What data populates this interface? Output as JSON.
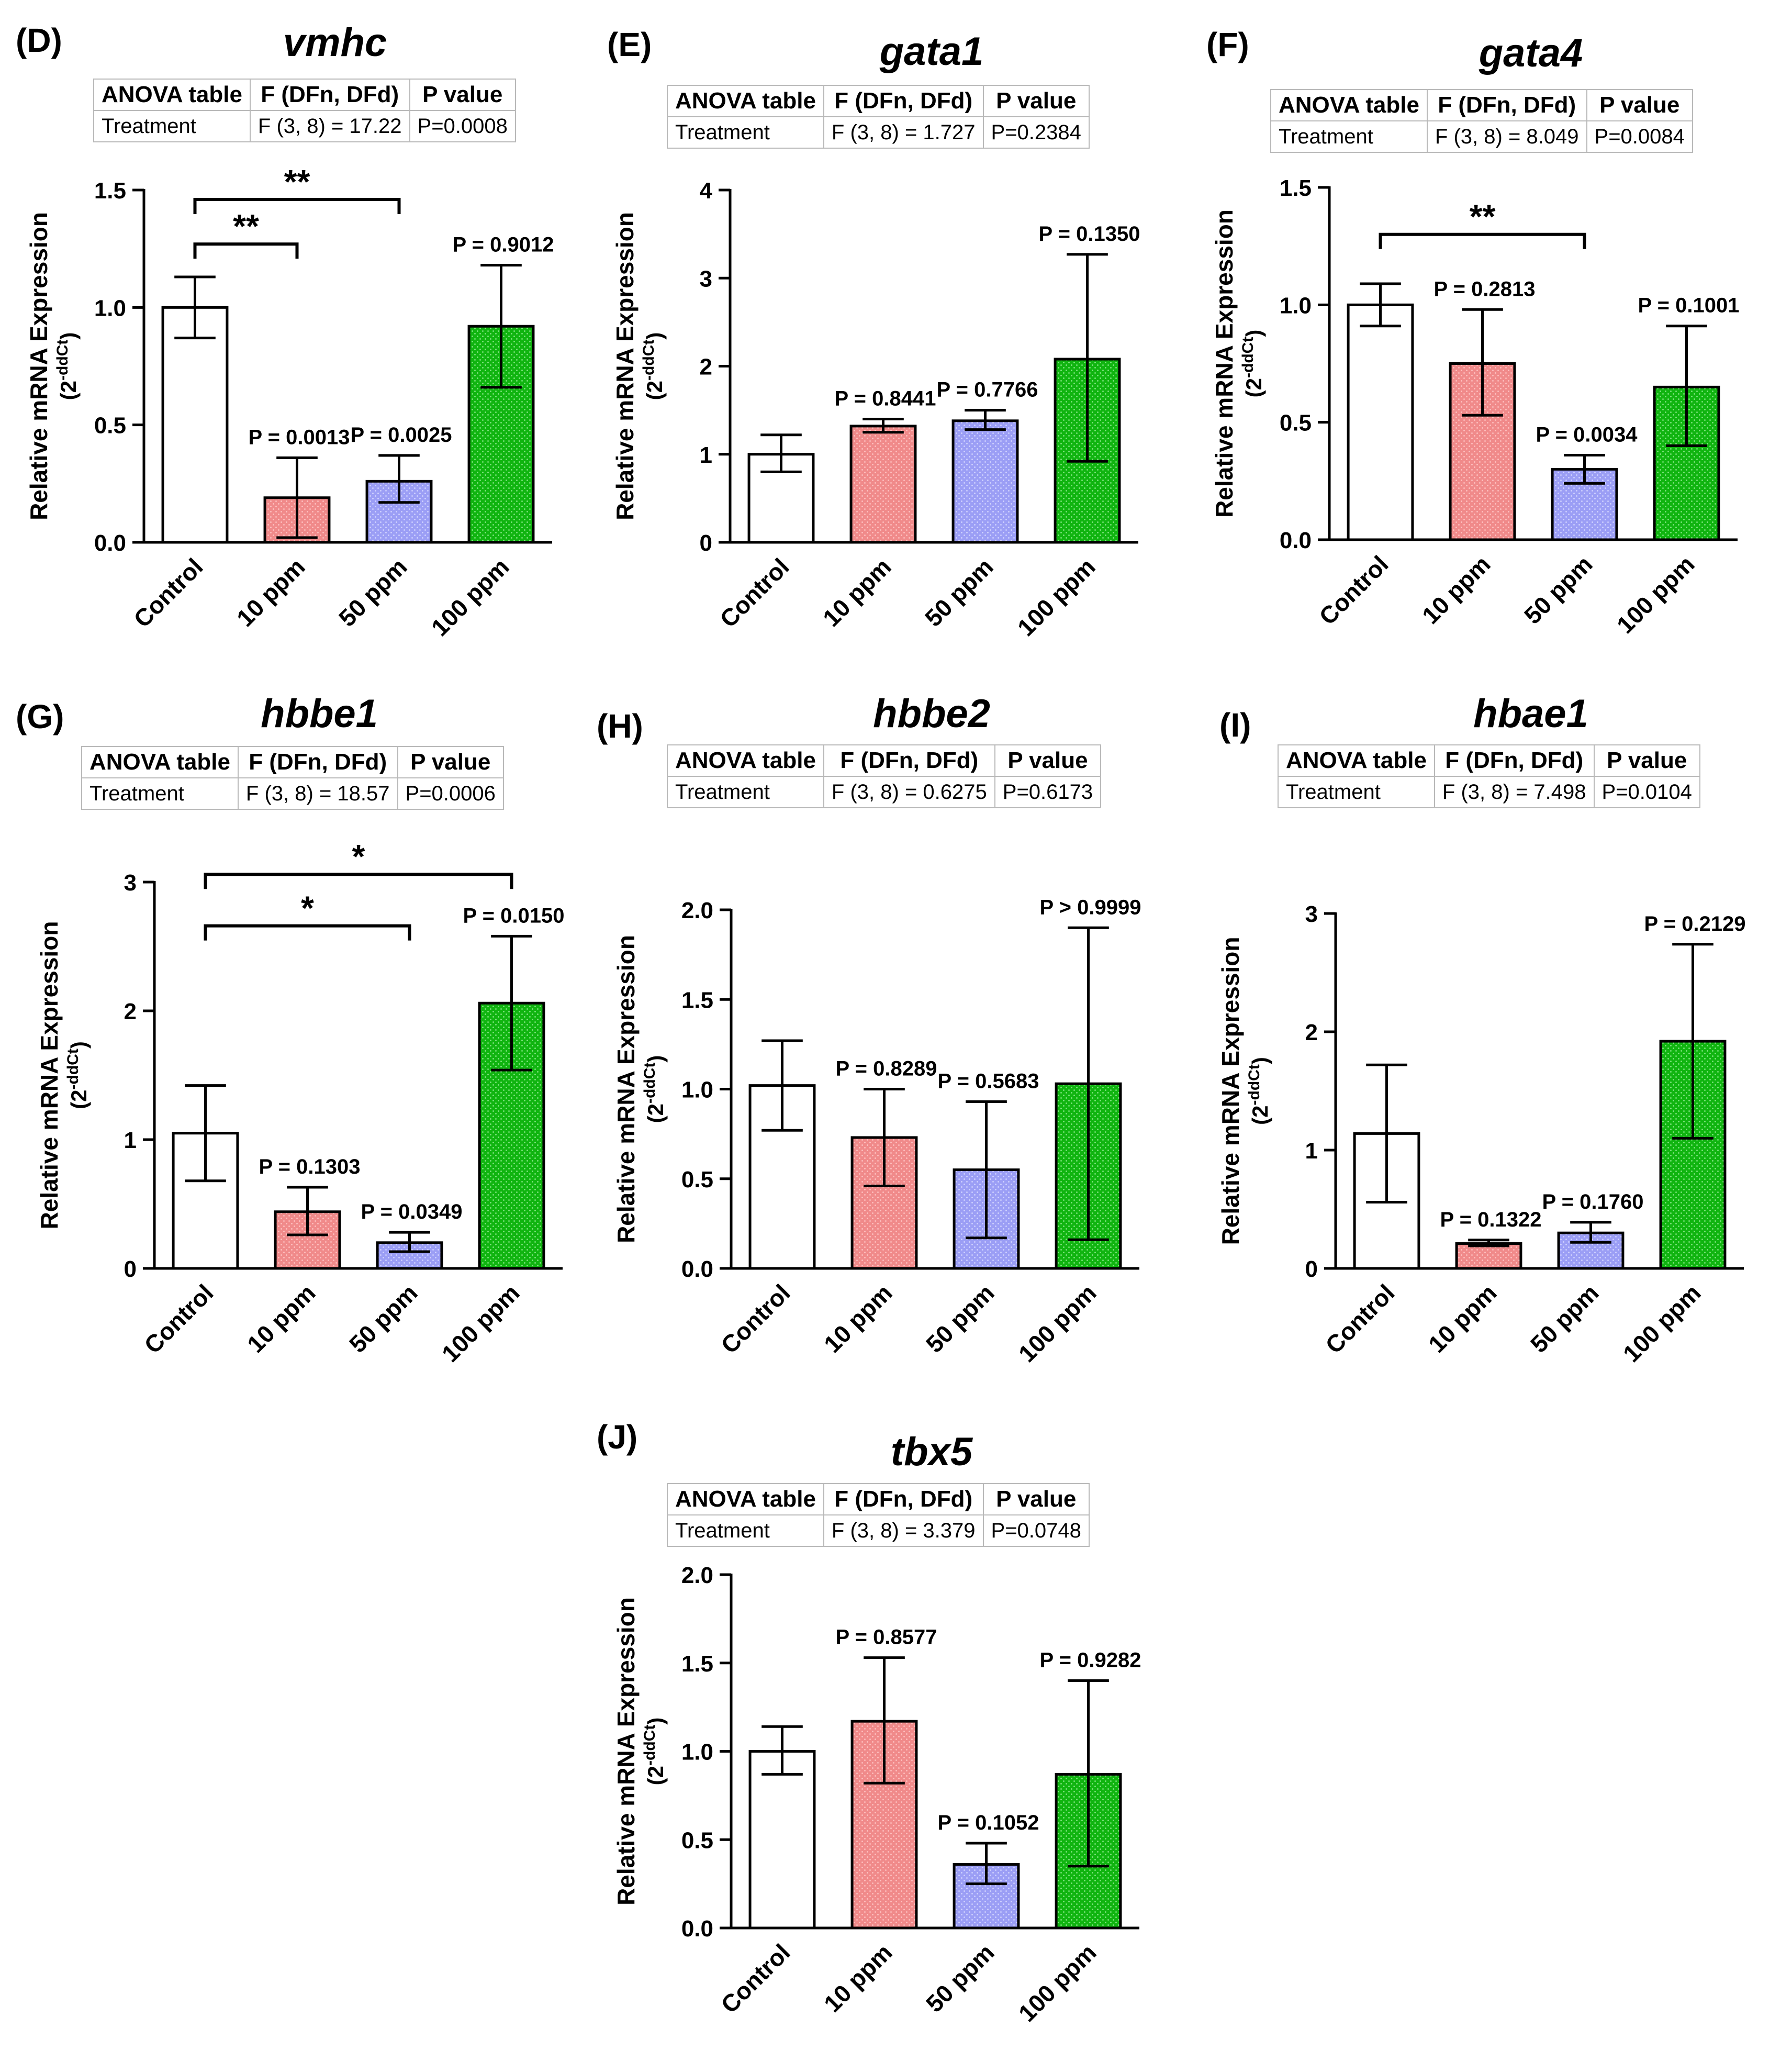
{
  "style": {
    "bar_colors": [
      "#ffffff",
      "#f08a8a",
      "#9b9ef5",
      "#10b410"
    ],
    "dot_colors": [
      "#ffffff",
      "#ffc4c4",
      "#d4d6ff",
      "#86e786"
    ],
    "axis_color": "#000000",
    "table_border": "#b9b9b9"
  },
  "chart_data": [
    {
      "type": "bar",
      "letter": "(D)",
      "title": "vmhc",
      "anova": {
        "header": [
          "ANOVA table",
          "F (DFn, DFd)",
          "P value"
        ],
        "row": [
          "Treatment",
          "F (3, 8) = 17.22",
          "P=0.0008"
        ]
      },
      "ylabel": "Relative mRNA Expression",
      "ylabel_unit": "(2",
      "ylabel_sup": "-ddCt",
      "ylabel_close": ")",
      "ylim": [
        0,
        1.5
      ],
      "ticks": [
        "0.0",
        "0.5",
        "1.0",
        "1.5"
      ],
      "categories": [
        "Control",
        "10 ppm",
        "50 ppm",
        "100 ppm"
      ],
      "values": [
        1.0,
        0.19,
        0.26,
        0.92
      ],
      "error_low": [
        0.87,
        0.02,
        0.17,
        0.66
      ],
      "error_high": [
        1.13,
        0.36,
        0.37,
        1.18
      ],
      "pvalues": [
        "",
        "P = 0.0013",
        "P = 0.0025",
        "P = 0.9012"
      ],
      "brackets": [
        {
          "from": 0,
          "to": 2,
          "y": 1.46,
          "label": "**"
        },
        {
          "from": 0,
          "to": 1,
          "y": 1.27,
          "label": "**"
        }
      ]
    },
    {
      "type": "bar",
      "letter": "(E)",
      "title": "gata1",
      "anova": {
        "header": [
          "ANOVA table",
          "F (DFn, DFd)",
          "P value"
        ],
        "row": [
          "Treatment",
          "F (3, 8) = 1.727",
          "P=0.2384"
        ]
      },
      "ylabel": "Relative mRNA Expression",
      "ylabel_unit": "(2",
      "ylabel_sup": "-ddCt",
      "ylabel_close": ")",
      "ylim": [
        0,
        4
      ],
      "ticks": [
        "0",
        "1",
        "2",
        "3",
        "4"
      ],
      "categories": [
        "Control",
        "10 ppm",
        "50 ppm",
        "100 ppm"
      ],
      "values": [
        1.0,
        1.32,
        1.38,
        2.08
      ],
      "error_low": [
        0.8,
        1.25,
        1.28,
        0.92
      ],
      "error_high": [
        1.22,
        1.4,
        1.5,
        3.27
      ],
      "pvalues": [
        "",
        "P = 0.8441",
        "P = 0.7766",
        "P = 0.1350"
      ],
      "brackets": []
    },
    {
      "type": "bar",
      "letter": "(F)",
      "title": "gata4",
      "anova": {
        "header": [
          "ANOVA table",
          "F (DFn, DFd)",
          "P value"
        ],
        "row": [
          "Treatment",
          "F (3, 8) = 8.049",
          "P=0.0084"
        ]
      },
      "ylabel": "Relative mRNA Expression",
      "ylabel_unit": "(2",
      "ylabel_sup": "-ddCt",
      "ylabel_close": ")",
      "ylim": [
        0,
        1.5
      ],
      "ticks": [
        "0.0",
        "0.5",
        "1.0",
        "1.5"
      ],
      "categories": [
        "Control",
        "10 ppm",
        "50 ppm",
        "100 ppm"
      ],
      "values": [
        1.0,
        0.75,
        0.3,
        0.65
      ],
      "error_low": [
        0.91,
        0.53,
        0.24,
        0.4
      ],
      "error_high": [
        1.09,
        0.98,
        0.36,
        0.91
      ],
      "pvalues": [
        "",
        "P = 0.2813",
        "P = 0.0034",
        "P = 0.1001"
      ],
      "brackets": [
        {
          "from": 0,
          "to": 2,
          "y": 1.3,
          "label": "**"
        }
      ]
    },
    {
      "type": "bar",
      "letter": "(G)",
      "title": "hbbe1",
      "anova": {
        "header": [
          "ANOVA table",
          "F (DFn, DFd)",
          "P value"
        ],
        "row": [
          "Treatment",
          "F (3, 8) = 18.57",
          "P=0.0006"
        ]
      },
      "ylabel": "Relative mRNA Expression",
      "ylabel_unit": "(2",
      "ylabel_sup": "-ddCt",
      "ylabel_close": ")",
      "ylim": [
        0,
        3
      ],
      "ticks": [
        "0",
        "1",
        "2",
        "3"
      ],
      "categories": [
        "Control",
        "10 ppm",
        "50 ppm",
        "100 ppm"
      ],
      "values": [
        1.05,
        0.44,
        0.2,
        2.06
      ],
      "error_low": [
        0.68,
        0.26,
        0.13,
        1.54
      ],
      "error_high": [
        1.42,
        0.63,
        0.28,
        2.58
      ],
      "pvalues": [
        "",
        "P = 0.1303",
        "P = 0.0349",
        "P = 0.0150"
      ],
      "brackets": [
        {
          "from": 0,
          "to": 3,
          "y": 3.06,
          "label": "*"
        },
        {
          "from": 0,
          "to": 2,
          "y": 2.66,
          "label": "*"
        }
      ]
    },
    {
      "type": "bar",
      "letter": "(H)",
      "title": "hbbe2",
      "anova": {
        "header": [
          "ANOVA table",
          "F (DFn, DFd)",
          "P value"
        ],
        "row": [
          "Treatment",
          "F (3, 8) = 0.6275",
          "P=0.6173"
        ]
      },
      "ylabel": "Relative mRNA Expression",
      "ylabel_unit": "(2",
      "ylabel_sup": "-ddCt",
      "ylabel_close": ")",
      "ylim": [
        0,
        2.0
      ],
      "ticks": [
        "0.0",
        "0.5",
        "1.0",
        "1.5",
        "2.0"
      ],
      "categories": [
        "Control",
        "10 ppm",
        "50 ppm",
        "100 ppm"
      ],
      "values": [
        1.02,
        0.73,
        0.55,
        1.03
      ],
      "error_low": [
        0.77,
        0.46,
        0.17,
        0.16
      ],
      "error_high": [
        1.27,
        1.0,
        0.93,
        1.9
      ],
      "pvalues": [
        "",
        "P = 0.8289",
        "P = 0.5683",
        "P > 0.9999"
      ],
      "brackets": []
    },
    {
      "type": "bar",
      "letter": "(I)",
      "title": "hbae1",
      "anova": {
        "header": [
          "ANOVA table",
          "F (DFn, DFd)",
          "P value"
        ],
        "row": [
          "Treatment",
          "F (3, 8) = 7.498",
          "P=0.0104"
        ]
      },
      "ylabel": "Relative mRNA Expression",
      "ylabel_unit": "(2",
      "ylabel_sup": "-ddCt",
      "ylabel_close": ")",
      "ylim": [
        0,
        3
      ],
      "ticks": [
        "0",
        "1",
        "2",
        "3"
      ],
      "categories": [
        "Control",
        "10 ppm",
        "50 ppm",
        "100 ppm"
      ],
      "values": [
        1.14,
        0.21,
        0.3,
        1.92
      ],
      "error_low": [
        0.56,
        0.19,
        0.22,
        1.1
      ],
      "error_high": [
        1.72,
        0.24,
        0.39,
        2.74
      ],
      "pvalues": [
        "",
        "P = 0.1322",
        "P = 0.1760",
        "P = 0.2129"
      ],
      "brackets": []
    },
    {
      "type": "bar",
      "letter": "(J)",
      "title": "tbx5",
      "anova": {
        "header": [
          "ANOVA table",
          "F (DFn, DFd)",
          "P value"
        ],
        "row": [
          "Treatment",
          "F (3, 8) = 3.379",
          "P=0.0748"
        ]
      },
      "ylabel": "Relative mRNA Expression",
      "ylabel_unit": "(2",
      "ylabel_sup": "-ddCt",
      "ylabel_close": ")",
      "ylim": [
        0,
        2.0
      ],
      "ticks": [
        "0.0",
        "0.5",
        "1.0",
        "1.5",
        "2.0"
      ],
      "categories": [
        "Control",
        "10 ppm",
        "50 ppm",
        "100 ppm"
      ],
      "values": [
        1.0,
        1.17,
        0.36,
        0.87
      ],
      "error_low": [
        0.87,
        0.82,
        0.25,
        0.35
      ],
      "error_high": [
        1.14,
        1.53,
        0.48,
        1.4
      ],
      "pvalues": [
        "",
        "P = 0.8577",
        "P = 0.1052",
        "P = 0.9282"
      ],
      "brackets": []
    }
  ]
}
